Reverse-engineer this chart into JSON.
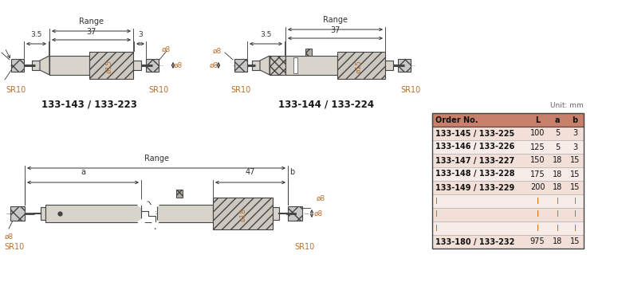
{
  "bg_color": "#ffffff",
  "body_color": "#d8d4cc",
  "body_edge": "#444444",
  "dim_color": "#333333",
  "orange_color": "#b87030",
  "table_header_bg": "#c8806a",
  "table_row_even_bg": "#f2e0d8",
  "table_row_odd_bg": "#f8ece8",
  "table_border": "#555555",
  "unit_text": "Unit: mm",
  "table_headers": [
    "Order No.",
    "L",
    "a",
    "b"
  ],
  "table_rows": [
    [
      "133-145 / 133-225",
      "100",
      "5",
      "3"
    ],
    [
      "133-146 / 133-226",
      "125",
      "5",
      "3"
    ],
    [
      "133-147 / 133-227",
      "150",
      "18",
      "15"
    ],
    [
      "133-148 / 133-228",
      "175",
      "18",
      "15"
    ],
    [
      "133-149 / 133-229",
      "200",
      "18",
      "15"
    ],
    [
      "I",
      "I",
      "I",
      "I"
    ],
    [
      "I",
      "I",
      "I",
      "I"
    ],
    [
      "I",
      "I",
      "I",
      "I"
    ],
    [
      "133-180 / 133-232",
      "975",
      "18",
      "15"
    ]
  ],
  "dot_row_indices": [
    5,
    6,
    7
  ]
}
